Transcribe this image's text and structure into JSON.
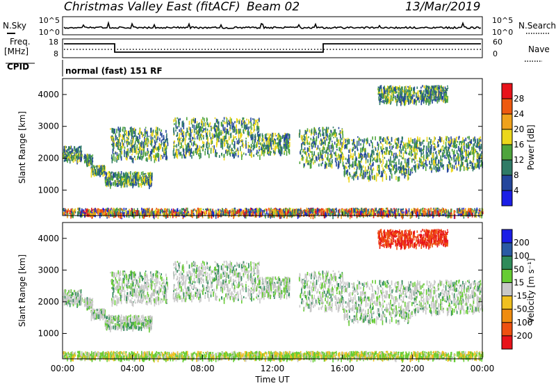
{
  "header": {
    "title": "Christmas Valley East (fitACF)",
    "beam": "Beam 02",
    "date": "13/Mar/2019"
  },
  "top_panels": {
    "nsky_label": "N.Sky",
    "nsky_ticks": [
      "10^5",
      "10^0"
    ],
    "nsearch_label": "N.Search",
    "nsearch_ticks": [
      "10^5",
      "10^0"
    ],
    "freq_label_line1": "Freq.",
    "freq_label_line2": "[MHz]",
    "freq_ticks": [
      "18",
      "8"
    ],
    "nave_label": "Nave",
    "nave_ticks": [
      "60",
      "0"
    ],
    "cpid_label": "CPID",
    "cpid_value": "normal (fast) 151 RF"
  },
  "chart_data": [
    {
      "type": "heatmap",
      "name": "power",
      "ylabel": "Slant Range [km]",
      "ylim": [
        200,
        4500
      ],
      "yticks": [
        "1000",
        "2000",
        "3000",
        "4000"
      ],
      "xlim_hours": [
        0,
        24
      ],
      "colorbar": {
        "label": "Power [dB]",
        "ticks": [
          "28",
          "24",
          "20",
          "16",
          "12",
          "8",
          "4"
        ],
        "colors": [
          "#e8131a",
          "#ee5a10",
          "#f0a21c",
          "#ecd71c",
          "#4ea43c",
          "#2f7b66",
          "#24469c",
          "#1b1ee6"
        ]
      },
      "echo_regions": [
        {
          "t": [
            0.0,
            1.1
          ],
          "r": [
            1950,
            2400
          ]
        },
        {
          "t": [
            1.2,
            1.7
          ],
          "r": [
            1850,
            2150
          ]
        },
        {
          "t": [
            1.6,
            2.4
          ],
          "r": [
            1550,
            1800
          ]
        },
        {
          "t": [
            2.4,
            5.1
          ],
          "r": [
            1200,
            1600
          ]
        },
        {
          "t": [
            2.7,
            6.0
          ],
          "r": [
            2000,
            3000
          ]
        },
        {
          "t": [
            6.3,
            11.3
          ],
          "r": [
            2100,
            3300
          ]
        },
        {
          "t": [
            11.3,
            13.0
          ],
          "r": [
            2200,
            2800
          ]
        },
        {
          "t": [
            13.5,
            16.0
          ],
          "r": [
            1800,
            3000
          ]
        },
        {
          "t": [
            16.0,
            20.0
          ],
          "r": [
            1400,
            2700
          ]
        },
        {
          "t": [
            20.0,
            24.0
          ],
          "r": [
            1700,
            2700
          ]
        },
        {
          "t": [
            18.0,
            22.0
          ],
          "r": [
            3800,
            4300
          ]
        },
        {
          "t": [
            0.0,
            24.0
          ],
          "r": [
            250,
            450
          ]
        }
      ]
    },
    {
      "type": "heatmap",
      "name": "velocity",
      "ylabel": "Slant Range [km]",
      "xlabel": "Time UT",
      "ylim": [
        200,
        4500
      ],
      "yticks": [
        "1000",
        "2000",
        "3000",
        "4000"
      ],
      "xticks": [
        "00:00",
        "04:00",
        "08:00",
        "12:00",
        "16:00",
        "20:00",
        "00:00"
      ],
      "colorbar": {
        "label": "Velocity [m s⁻¹]",
        "ticks": [
          "200",
          "100",
          "50",
          "15",
          "-15",
          "-50",
          "-100",
          "-200"
        ],
        "colors": [
          "#1b1ee6",
          "#2a5aa4",
          "#2f8b5a",
          "#66cc33",
          "#c8c8c8",
          "#f0c020",
          "#f08c10",
          "#ee5010",
          "#e8131a"
        ]
      }
    }
  ]
}
